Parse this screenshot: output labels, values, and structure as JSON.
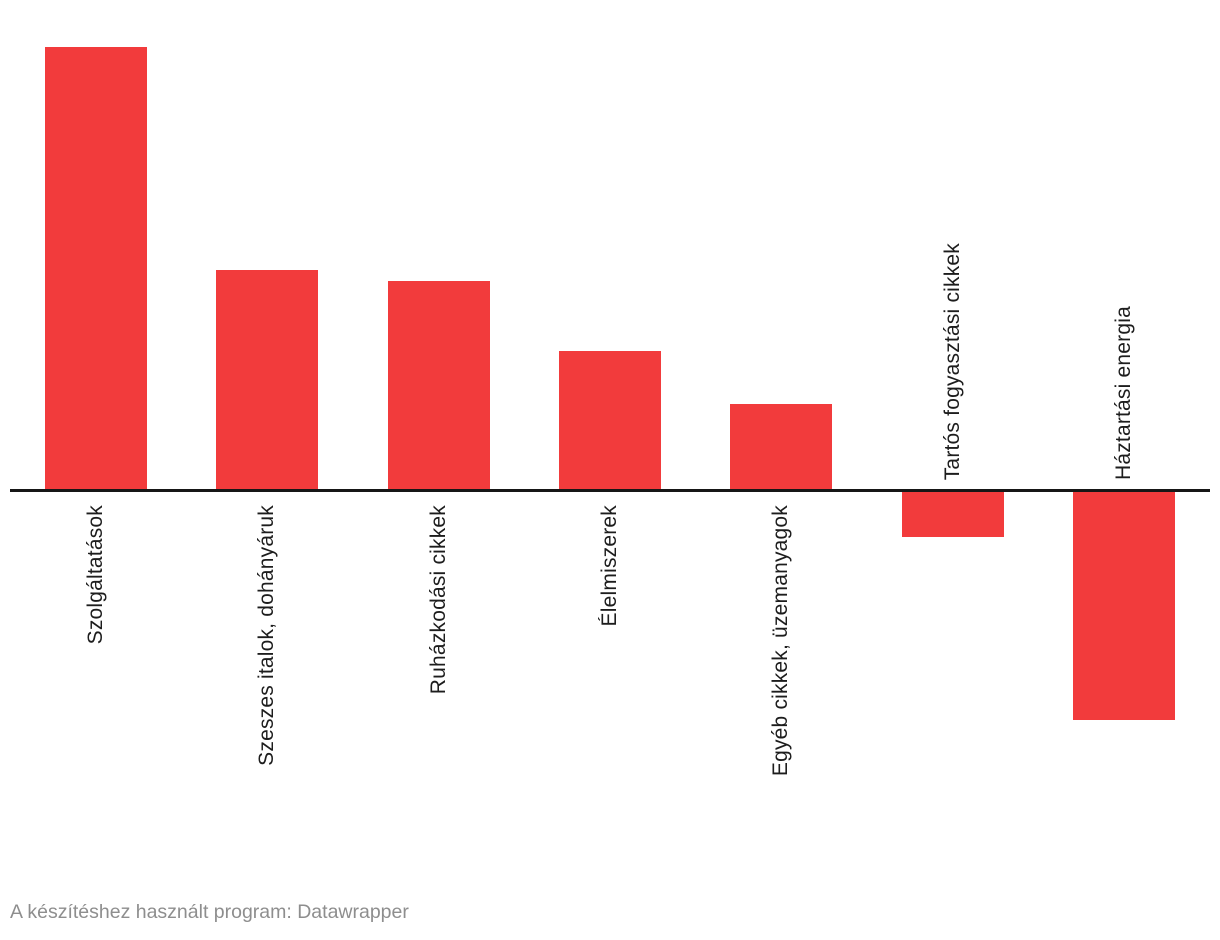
{
  "chart_data": {
    "type": "bar",
    "orientation": "vertical-columns",
    "title": "",
    "xlabel": "",
    "ylabel": "",
    "grid": false,
    "legend": false,
    "numeric_axis_shown": false,
    "value_unit": "relative (no numeric axis or tick labels are rendered; values are signed bar lengths in screen pixels)",
    "categories": [
      "Szolgáltatások",
      "Szeszes italok, dohányáruk",
      "Ruházkodási cikkek",
      "Élelmiszerek",
      "Egyéb cikkek, üzemanyagok",
      "Tartós fogyasztási cikkek",
      "Háztartási energia"
    ],
    "values": [
      442,
      219,
      208,
      138,
      85,
      -45,
      -228
    ],
    "values_normalized_to_max": [
      1.0,
      0.495,
      0.471,
      0.312,
      0.192,
      -0.102,
      -0.516
    ],
    "baseline": 0,
    "label_rotation_deg": -90,
    "bar_color": "#f23b3c",
    "axis_line_color": "#161616",
    "label_color": "#1d1d1d"
  },
  "footer": {
    "text": "A készítéshez használt program: Datawrapper",
    "color": "#8e8e8e"
  }
}
